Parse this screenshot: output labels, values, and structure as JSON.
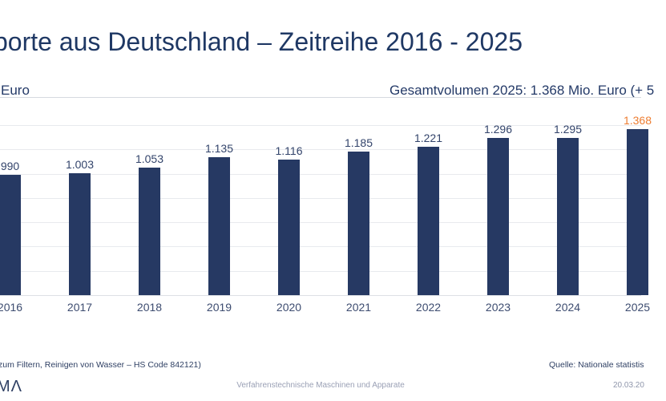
{
  "title": "porte aus Deutschland – Zeitreihe 2016 - 2025",
  "header": {
    "unit_label": "Euro",
    "total_label": "Gesamtvolumen 2025: 1.368 Mio. Euro (+ 5"
  },
  "chart_data": {
    "type": "bar",
    "categories": [
      "2016",
      "2017",
      "2018",
      "2019",
      "2020",
      "2021",
      "2022",
      "2023",
      "2024",
      "2025"
    ],
    "values": [
      990,
      1003,
      1053,
      1135,
      1116,
      1185,
      1221,
      1296,
      1295,
      1368
    ],
    "value_labels": [
      "990",
      "1.003",
      "1.053",
      "1.135",
      "1.116",
      "1.185",
      "1.221",
      "1.296",
      "1.295",
      "1.368"
    ],
    "unit": "Euro",
    "highlight_index": 9,
    "ylim": [
      0,
      1450
    ],
    "gridline_step": 200,
    "gridline_max": 1400,
    "grid": true,
    "legend": "none",
    "colors": {
      "bar": "#263963",
      "value_label": "#33446B",
      "highlight_label": "#ED7D31",
      "gridline": "#E8EAEE"
    }
  },
  "footer": {
    "note": "zum Filtern, Reinigen von Wasser – HS Code 842121)",
    "source": "Quelle: Nationale statistis",
    "logo": "MΛ",
    "center": "Verfahrenstechnische Maschinen und Apparate",
    "date": "20.03.20"
  }
}
